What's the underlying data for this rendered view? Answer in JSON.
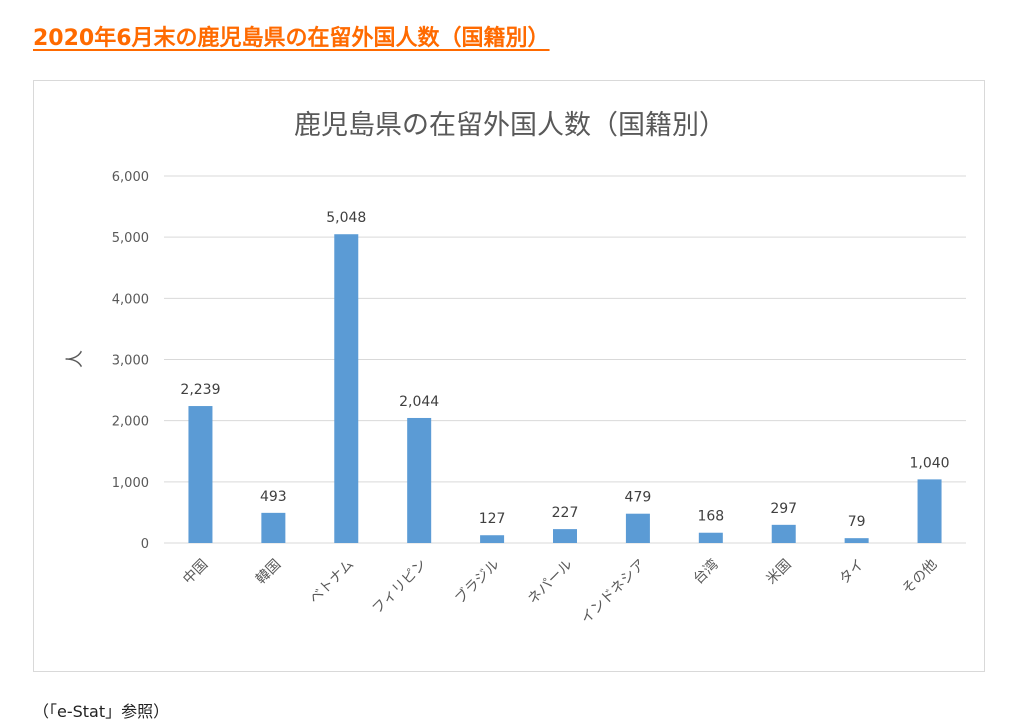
{
  "page": {
    "heading": "2020年6月末の鹿児島県の在留外国人数（国籍別）",
    "footnote": "（「e-Stat」参照）"
  },
  "colors": {
    "heading": "#ff6a00",
    "bar": "#5b9bd5",
    "grid": "#d9d9d9",
    "text": "#595959"
  },
  "chart_data": {
    "type": "bar",
    "title": "鹿児島県の在留外国人数（国籍別）",
    "ylabel": "人",
    "xlabel": "",
    "ylim": [
      0,
      6000
    ],
    "yticks": [
      0,
      1000,
      2000,
      3000,
      4000,
      5000,
      6000
    ],
    "ytick_labels": [
      "0",
      "1,000",
      "2,000",
      "3,000",
      "4,000",
      "5,000",
      "6,000"
    ],
    "grid": true,
    "legend": "none",
    "categories": [
      "中国",
      "韓国",
      "ベトナム",
      "フィリピン",
      "ブラジル",
      "ネパール",
      "インドネシア",
      "台湾",
      "米国",
      "タイ",
      "その他"
    ],
    "values": [
      2239,
      493,
      5048,
      2044,
      127,
      227,
      479,
      168,
      297,
      79,
      1040
    ],
    "value_labels": [
      "2,239",
      "493",
      "5,048",
      "2,044",
      "127",
      "227",
      "479",
      "168",
      "297",
      "79",
      "1,040"
    ]
  }
}
